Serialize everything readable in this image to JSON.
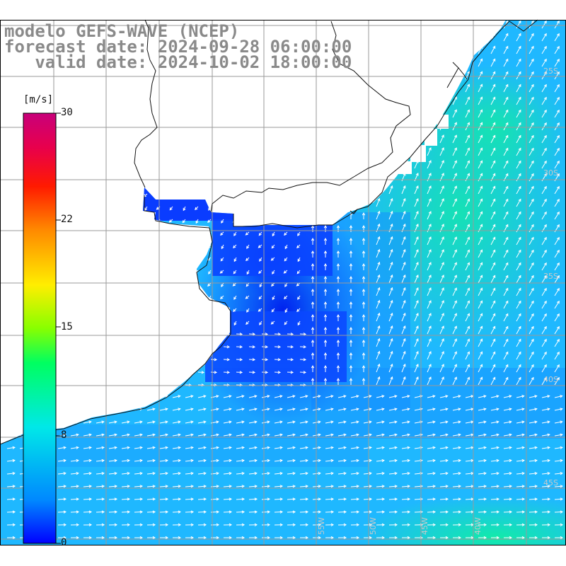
{
  "title": {
    "line1": "modelo GEFS-WAVE (NCEP)",
    "line2": "forecast date: 2024-09-28 06:00:00",
    "line3": "   valid date: 2024-10-02 18:00:00"
  },
  "colorbar": {
    "unit": "[m/s]",
    "ticks": [
      {
        "label": "30",
        "value": 30
      },
      {
        "label": "22",
        "value": 22
      },
      {
        "label": "15",
        "value": 15
      },
      {
        "label": "8",
        "value": 8
      },
      {
        "label": "0",
        "value": 0
      }
    ],
    "range": [
      0,
      30
    ],
    "colors": [
      "#0000ff",
      "#0088ff",
      "#00e8e8",
      "#00ff60",
      "#88ff00",
      "#ffee00",
      "#ff8800",
      "#ff1a00",
      "#e8004c",
      "#c8007a"
    ]
  },
  "map": {
    "type": "wind-vector-field",
    "region": "South Atlantic, Argentina / Uruguay / southern Brazil coast",
    "ocean_base_color": "#1fb8ff",
    "calm_area_color": "#0a44ff",
    "land_color": "#ffffff",
    "grid_color": "#999999",
    "grid_lines": "on",
    "lon_labels": [
      "55W",
      "50W",
      "45W",
      "40W"
    ],
    "lat_labels": [
      "25S",
      "30S",
      "35S",
      "40S",
      "45S"
    ]
  }
}
